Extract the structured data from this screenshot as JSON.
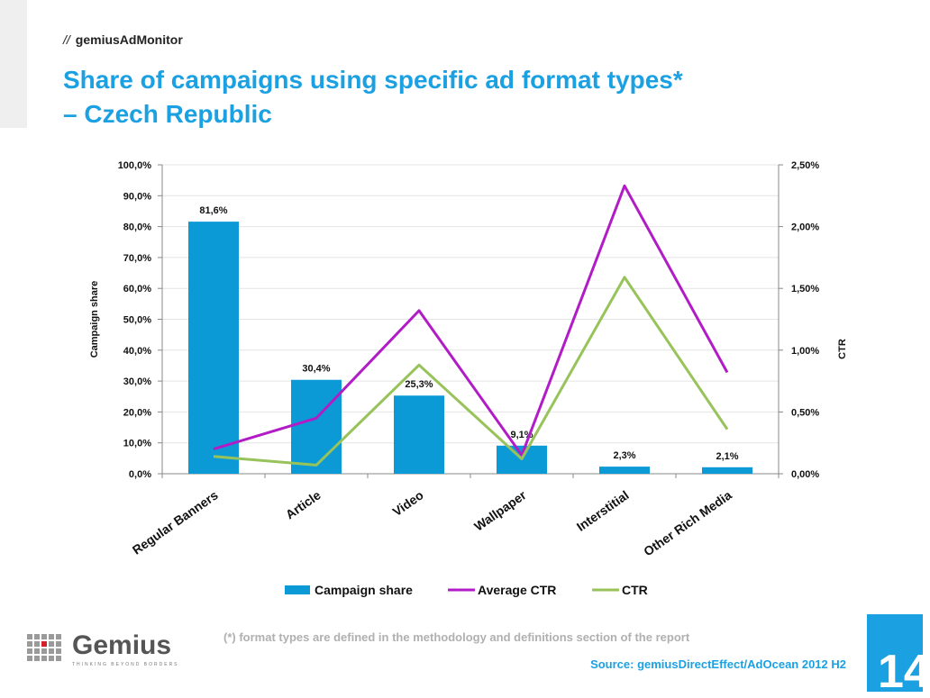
{
  "header": {
    "section_prefix": "//",
    "section_label": "gemiusAdMonitor",
    "title_line1": "Share of campaigns using specific ad format types*",
    "title_line2": "– Czech Republic"
  },
  "chart_data": {
    "type": "bar",
    "categories": [
      "Regular Banners",
      "Article",
      "Video",
      "Wallpaper",
      "Interstitial",
      "Other Rich Media"
    ],
    "series": [
      {
        "name": "Campaign share",
        "type": "bar",
        "axis": "left",
        "color": "#0b9ad6",
        "values": [
          81.6,
          30.4,
          25.3,
          9.1,
          2.3,
          2.1
        ],
        "labels": [
          "81,6%",
          "30,4%",
          "25,3%",
          "9,1%",
          "2,3%",
          "2,1%"
        ]
      },
      {
        "name": "Average CTR",
        "type": "line",
        "axis": "right",
        "color": "#b11cc6",
        "values": [
          0.2,
          0.45,
          1.32,
          0.15,
          2.33,
          0.82
        ]
      },
      {
        "name": "CTR",
        "type": "line",
        "axis": "right",
        "color": "#98c35a",
        "values": [
          0.14,
          0.07,
          0.88,
          0.12,
          1.59,
          0.36
        ]
      }
    ],
    "ylabel": "Campaign share",
    "y2label": "CTR",
    "ylim": [
      0,
      100
    ],
    "y2lim": [
      0,
      2.5
    ],
    "yticks": [
      "0,0%",
      "10,0%",
      "20,0%",
      "30,0%",
      "40,0%",
      "50,0%",
      "60,0%",
      "70,0%",
      "80,0%",
      "90,0%",
      "100,0%"
    ],
    "y2ticks": [
      "0,00%",
      "0,50%",
      "1,00%",
      "1,50%",
      "2,00%",
      "2,50%"
    ],
    "legend_position": "bottom",
    "grid": true
  },
  "footnote": "(*)  format types are defined in the methodology and definitions section of the report",
  "source": "Source: gemiusDirectEffect/AdOcean 2012 H2",
  "page_number": "14",
  "logo": {
    "name": "Gemius",
    "tagline": "THINKING BEYOND BORDERS",
    "icon": "gemius-logo-icon"
  }
}
